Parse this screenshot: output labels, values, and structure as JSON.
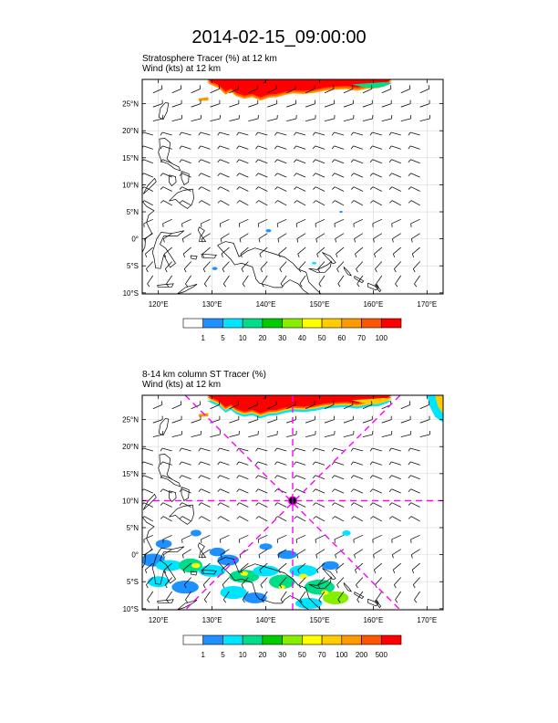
{
  "title": "2014-02-15_09:00:00",
  "colors": {
    "land_line": "#000000",
    "grid": "#d9d9d9",
    "barb": "#111111",
    "magenta": "#ff00ff",
    "red": "#ff0000"
  },
  "map_extent": {
    "lon_min": 117,
    "lon_max": 173,
    "lat_min": -10.2,
    "lat_max": 29.5
  },
  "lat_labels": [
    "25°N",
    "20°N",
    "15°N",
    "10°N",
    "5°N",
    "0°",
    "5°S",
    "10°S"
  ],
  "lat_values": [
    25,
    20,
    15,
    10,
    5,
    0,
    -5,
    -10
  ],
  "lon_labels": [
    "120°E",
    "130°E",
    "140°E",
    "150°E",
    "160°E",
    "170°E"
  ],
  "lon_values": [
    120,
    130,
    140,
    150,
    160,
    170
  ],
  "panels": [
    {
      "title_line1": "Stratosphere Tracer   (%)     at   12 km",
      "title_line2": "Wind   (kts)     at  12 km",
      "legend_labels": [
        "1",
        "5",
        "10",
        "20",
        "30",
        "40",
        "50",
        "60",
        "70",
        "100"
      ],
      "legend_colors": [
        "#ffffff",
        "#1e90ff",
        "#00e5ff",
        "#00dd88",
        "#00cc00",
        "#88ee00",
        "#ffff00",
        "#ffcc00",
        "#ff9900",
        "#ff5500",
        "#ff0000"
      ],
      "has_cross_section": false
    },
    {
      "title_line1": "8-14 km column ST Tracer   (%)",
      "title_line2": "Wind   (kts)     at  12 km",
      "legend_labels": [
        "1",
        "5",
        "10",
        "20",
        "30",
        "50",
        "70",
        "100",
        "200",
        "500"
      ],
      "legend_colors": [
        "#ffffff",
        "#1e90ff",
        "#00e5ff",
        "#00dd88",
        "#00cc00",
        "#88ee00",
        "#ffff00",
        "#ffcc00",
        "#ff9900",
        "#ff5500",
        "#ff0000"
      ],
      "has_cross_section": true,
      "center": {
        "lon": 145,
        "lat": 10
      }
    }
  ]
}
